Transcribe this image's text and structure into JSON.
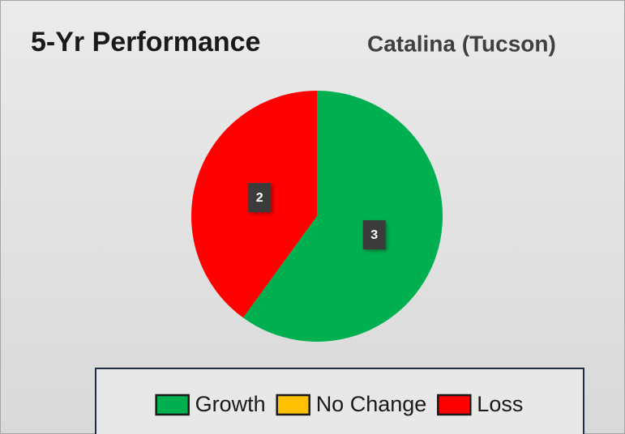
{
  "chart_data": {
    "type": "pie",
    "title": "5-Yr Performance",
    "subtitle": "Catalina (Tucson)",
    "categories": [
      "Growth",
      "No Change",
      "Loss"
    ],
    "values": [
      3,
      0,
      2
    ],
    "colors": [
      "#00b050",
      "#ffc000",
      "#ff0000"
    ],
    "legend": "bottom"
  }
}
